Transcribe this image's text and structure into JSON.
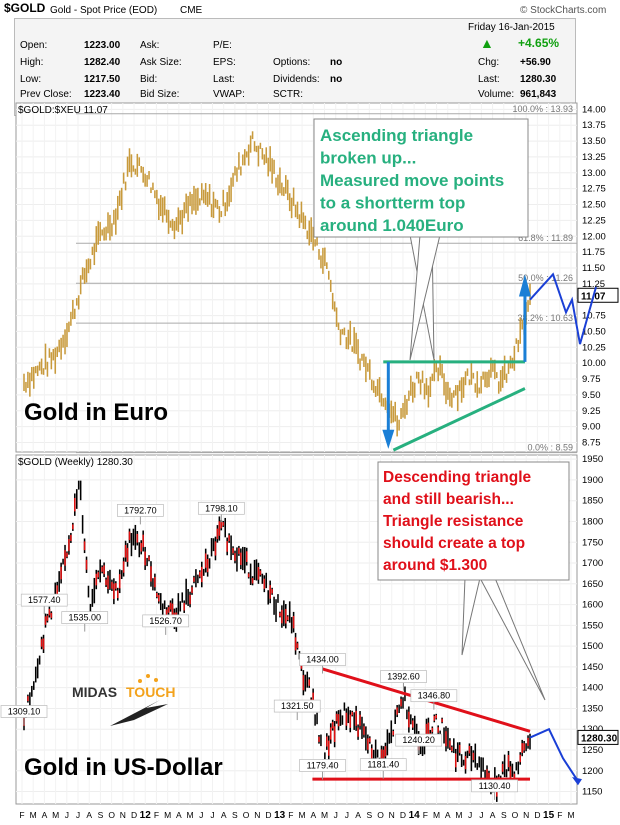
{
  "header": {
    "symbol": "$GOLD",
    "name": "Gold - Spot Price (EOD)",
    "exchange": "CME",
    "brand": "© StockCharts.com",
    "date": "Friday 16-Jan-2015",
    "change_pct": "+4.65%",
    "up_arrow_color": "#10a010",
    "quote": [
      {
        "label": "Open:",
        "value": "1223.00"
      },
      {
        "label": "High:",
        "value": "1282.40"
      },
      {
        "label": "Low:",
        "value": "1217.50"
      },
      {
        "label": "Prev Close:",
        "value": "1223.40"
      }
    ],
    "quote2": [
      "Ask:",
      "Ask Size:",
      "Bid:",
      "Bid Size:"
    ],
    "quote3": [
      "P/E:",
      "EPS:",
      "Last:",
      "VWAP:"
    ],
    "quote4": [
      {
        "label": "Options:",
        "value": "no"
      },
      {
        "label": "Dividends:",
        "value": "no"
      },
      {
        "label": "SCTR:",
        "value": ""
      }
    ],
    "quote5": [
      {
        "label": "Chg:",
        "value": "+56.90"
      },
      {
        "label": "Last:",
        "value": "1280.30"
      },
      {
        "label": "Volume:",
        "value": "961,843"
      }
    ]
  },
  "chart_data": [
    {
      "type": "bar",
      "title": "$GOLD:$XEU 11.07",
      "overlay_label": "Gold in Euro",
      "last_value": "11.07",
      "ylim": [
        8.6,
        14.1
      ],
      "y_ticks": [
        "14.00",
        "13.75",
        "13.50",
        "13.25",
        "13.00",
        "12.75",
        "12.50",
        "12.25",
        "12.00",
        "11.75",
        "11.50",
        "11.25",
        "11.00",
        "10.75",
        "10.50",
        "10.25",
        "10.00",
        "9.75",
        "9.50",
        "9.25",
        "9.00",
        "8.75"
      ],
      "fib_levels": [
        {
          "label": "100.0% : 13.93",
          "value": 13.93
        },
        {
          "label": "61.8% : 11.89",
          "value": 11.89
        },
        {
          "label": "50.0% : 11.26",
          "value": 11.26
        },
        {
          "label": "38.2% : 10.63",
          "value": 10.63
        },
        {
          "label": "0.0% : 8.59",
          "value": 8.59
        }
      ],
      "annotation": [
        "Ascending triangle",
        "broken up...",
        "Measured move points",
        "to a shortterm top",
        "around 1.040Euro"
      ],
      "annotation_color": "#27b07f",
      "anchors": [
        {
          "t": 0,
          "v": 9.7
        },
        {
          "t": 0.03,
          "v": 9.9
        },
        {
          "t": 0.06,
          "v": 10.1
        },
        {
          "t": 0.09,
          "v": 10.6
        },
        {
          "t": 0.12,
          "v": 11.4
        },
        {
          "t": 0.15,
          "v": 12.0
        },
        {
          "t": 0.18,
          "v": 12.3
        },
        {
          "t": 0.21,
          "v": 13.2
        },
        {
          "t": 0.24,
          "v": 13.0
        },
        {
          "t": 0.27,
          "v": 12.5
        },
        {
          "t": 0.3,
          "v": 12.2
        },
        {
          "t": 0.33,
          "v": 12.5
        },
        {
          "t": 0.36,
          "v": 12.6
        },
        {
          "t": 0.39,
          "v": 12.4
        },
        {
          "t": 0.42,
          "v": 13.0
        },
        {
          "t": 0.45,
          "v": 13.5
        },
        {
          "t": 0.48,
          "v": 13.2
        },
        {
          "t": 0.51,
          "v": 12.8
        },
        {
          "t": 0.54,
          "v": 12.4
        },
        {
          "t": 0.57,
          "v": 12.0
        },
        {
          "t": 0.6,
          "v": 11.5
        },
        {
          "t": 0.62,
          "v": 10.6
        },
        {
          "t": 0.65,
          "v": 10.3
        },
        {
          "t": 0.68,
          "v": 9.9
        },
        {
          "t": 0.7,
          "v": 9.6
        },
        {
          "t": 0.72,
          "v": 9.4
        },
        {
          "t": 0.74,
          "v": 9.0
        },
        {
          "t": 0.76,
          "v": 9.5
        },
        {
          "t": 0.78,
          "v": 9.8
        },
        {
          "t": 0.8,
          "v": 9.6
        },
        {
          "t": 0.82,
          "v": 9.9
        },
        {
          "t": 0.84,
          "v": 9.5
        },
        {
          "t": 0.86,
          "v": 9.6
        },
        {
          "t": 0.88,
          "v": 9.8
        },
        {
          "t": 0.9,
          "v": 9.7
        },
        {
          "t": 0.92,
          "v": 9.9
        },
        {
          "t": 0.94,
          "v": 9.7
        },
        {
          "t": 0.96,
          "v": 9.9
        },
        {
          "t": 0.98,
          "v": 10.4
        },
        {
          "t": 1.0,
          "v": 11.0
        }
      ],
      "line_color": "#d4a64b"
    },
    {
      "type": "bar",
      "title": "$GOLD (Weekly) 1280.30",
      "overlay_label": "Gold in US-Dollar",
      "last_value": "1280.30",
      "ylim": [
        1120,
        1960
      ],
      "y_ticks": [
        "1950",
        "1900",
        "1850",
        "1800",
        "1750",
        "1700",
        "1650",
        "1600",
        "1550",
        "1500",
        "1450",
        "1400",
        "1350",
        "1300",
        "1250",
        "1200",
        "1150"
      ],
      "price_labels": [
        {
          "text": "1309.10",
          "t": 0.0,
          "v": 1309
        },
        {
          "text": "1577.40",
          "t": 0.04,
          "v": 1577
        },
        {
          "text": "1535.00",
          "t": 0.12,
          "v": 1535
        },
        {
          "text": "1792.70",
          "t": 0.23,
          "v": 1793
        },
        {
          "text": "1526.70",
          "t": 0.28,
          "v": 1527
        },
        {
          "text": "1798.10",
          "t": 0.39,
          "v": 1798
        },
        {
          "text": "1321.50",
          "t": 0.54,
          "v": 1322
        },
        {
          "text": "1434.00",
          "t": 0.59,
          "v": 1434
        },
        {
          "text": "1179.40",
          "t": 0.59,
          "v": 1179
        },
        {
          "text": "1181.40",
          "t": 0.71,
          "v": 1181
        },
        {
          "text": "1392.60",
          "t": 0.75,
          "v": 1393
        },
        {
          "text": "1346.80",
          "t": 0.81,
          "v": 1347
        },
        {
          "text": "1240.20",
          "t": 0.78,
          "v": 1240
        },
        {
          "text": "1130.40",
          "t": 0.93,
          "v": 1130
        }
      ],
      "annotation": [
        "Descending triangle",
        "and still bearish...",
        "Triangle resistance",
        "should create a top",
        "around $1.300"
      ],
      "annotation_color": "#e0101a",
      "anchors": [
        {
          "t": 0,
          "v": 1309
        },
        {
          "t": 0.03,
          "v": 1480
        },
        {
          "t": 0.05,
          "v": 1580
        },
        {
          "t": 0.07,
          "v": 1640
        },
        {
          "t": 0.09,
          "v": 1760
        },
        {
          "t": 0.11,
          "v": 1890
        },
        {
          "t": 0.13,
          "v": 1600
        },
        {
          "t": 0.15,
          "v": 1700
        },
        {
          "t": 0.18,
          "v": 1620
        },
        {
          "t": 0.21,
          "v": 1760
        },
        {
          "t": 0.24,
          "v": 1730
        },
        {
          "t": 0.27,
          "v": 1600
        },
        {
          "t": 0.3,
          "v": 1580
        },
        {
          "t": 0.33,
          "v": 1630
        },
        {
          "t": 0.36,
          "v": 1690
        },
        {
          "t": 0.39,
          "v": 1780
        },
        {
          "t": 0.42,
          "v": 1730
        },
        {
          "t": 0.45,
          "v": 1680
        },
        {
          "t": 0.48,
          "v": 1640
        },
        {
          "t": 0.51,
          "v": 1580
        },
        {
          "t": 0.53,
          "v": 1560
        },
        {
          "t": 0.55,
          "v": 1430
        },
        {
          "t": 0.57,
          "v": 1380
        },
        {
          "t": 0.59,
          "v": 1230
        },
        {
          "t": 0.61,
          "v": 1290
        },
        {
          "t": 0.63,
          "v": 1340
        },
        {
          "t": 0.65,
          "v": 1330
        },
        {
          "t": 0.67,
          "v": 1290
        },
        {
          "t": 0.69,
          "v": 1240
        },
        {
          "t": 0.71,
          "v": 1230
        },
        {
          "t": 0.73,
          "v": 1300
        },
        {
          "t": 0.75,
          "v": 1380
        },
        {
          "t": 0.77,
          "v": 1310
        },
        {
          "t": 0.79,
          "v": 1260
        },
        {
          "t": 0.81,
          "v": 1320
        },
        {
          "t": 0.83,
          "v": 1300
        },
        {
          "t": 0.85,
          "v": 1250
        },
        {
          "t": 0.87,
          "v": 1220
        },
        {
          "t": 0.89,
          "v": 1240
        },
        {
          "t": 0.91,
          "v": 1200
        },
        {
          "t": 0.93,
          "v": 1160
        },
        {
          "t": 0.95,
          "v": 1210
        },
        {
          "t": 0.97,
          "v": 1200
        },
        {
          "t": 0.99,
          "v": 1250
        },
        {
          "t": 1.0,
          "v": 1280
        }
      ],
      "line_color": "#d01010"
    }
  ],
  "x_axis": [
    "F",
    "M",
    "A",
    "M",
    "J",
    "J",
    "A",
    "S",
    "O",
    "N",
    "D",
    "12",
    "F",
    "M",
    "A",
    "M",
    "J",
    "J",
    "A",
    "S",
    "O",
    "N",
    "D",
    "13",
    "F",
    "M",
    "A",
    "M",
    "J",
    "J",
    "A",
    "S",
    "O",
    "N",
    "D",
    "14",
    "F",
    "M",
    "A",
    "M",
    "J",
    "J",
    "A",
    "S",
    "O",
    "N",
    "D",
    "15",
    "F",
    "M"
  ],
  "logo": {
    "text1": "MIDAS",
    "text2": "TOUCH",
    "color1": "#333333",
    "color2": "#f3a21b"
  }
}
